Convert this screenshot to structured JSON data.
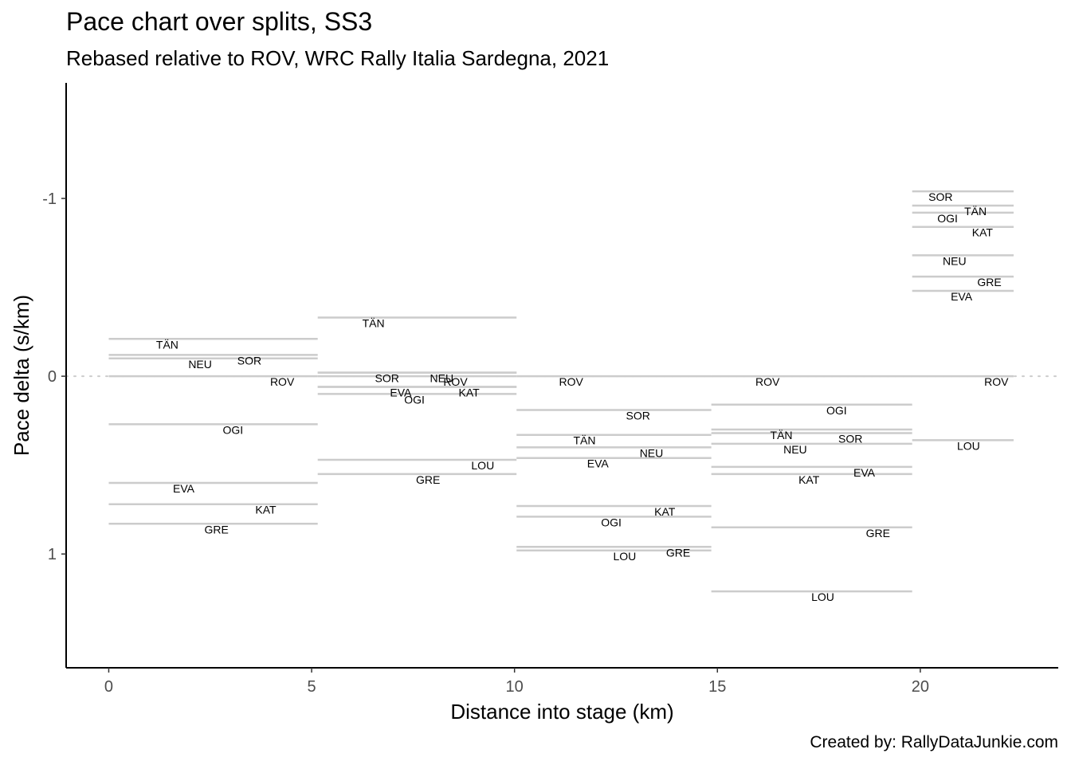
{
  "title": "Pace chart over splits, SS3",
  "subtitle": "Rebased relative to ROV, WRC Rally Italia Sardegna, 2021",
  "caption": "Created by: RallyDataJunkie.com",
  "chart_data": {
    "type": "line",
    "xlabel": "Distance into stage (km)",
    "ylabel": "Pace delta (s/km)",
    "x_ticks": [
      0,
      5,
      10,
      15,
      20
    ],
    "y_ticks": [
      -1,
      0,
      1
    ],
    "xlim": [
      -1.05,
      23.4
    ],
    "ylim": [
      -1.65,
      1.64
    ],
    "y_reversed": true,
    "reference_line": 0,
    "line_color": "#cccccc",
    "splits": [
      {
        "start": 0,
        "end": 5.15,
        "values": [
          {
            "driver": "TÄN",
            "pace": -0.21
          },
          {
            "driver": "SOR",
            "pace": -0.12
          },
          {
            "driver": "NEU",
            "pace": -0.1
          },
          {
            "driver": "ROV",
            "pace": 0
          },
          {
            "driver": "OGI",
            "pace": 0.27
          },
          {
            "driver": "EVA",
            "pace": 0.6
          },
          {
            "driver": "KAT",
            "pace": 0.72
          },
          {
            "driver": "GRE",
            "pace": 0.83
          }
        ]
      },
      {
        "start": 5.15,
        "end": 10.05,
        "values": [
          {
            "driver": "TÄN",
            "pace": -0.33
          },
          {
            "driver": "NEU",
            "pace": -0.02
          },
          {
            "driver": "SOR",
            "pace": -0.02
          },
          {
            "driver": "ROV",
            "pace": 0
          },
          {
            "driver": "EVA",
            "pace": 0.06
          },
          {
            "driver": "KAT",
            "pace": 0.06
          },
          {
            "driver": "OGI",
            "pace": 0.1
          },
          {
            "driver": "LOU",
            "pace": 0.47
          },
          {
            "driver": "GRE",
            "pace": 0.55
          }
        ]
      },
      {
        "start": 10.05,
        "end": 14.85,
        "values": [
          {
            "driver": "ROV",
            "pace": 0
          },
          {
            "driver": "SOR",
            "pace": 0.19
          },
          {
            "driver": "TÄN",
            "pace": 0.33
          },
          {
            "driver": "NEU",
            "pace": 0.4
          },
          {
            "driver": "EVA",
            "pace": 0.46
          },
          {
            "driver": "KAT",
            "pace": 0.73
          },
          {
            "driver": "OGI",
            "pace": 0.79
          },
          {
            "driver": "GRE",
            "pace": 0.96
          },
          {
            "driver": "LOU",
            "pace": 0.98
          }
        ]
      },
      {
        "start": 14.85,
        "end": 19.8,
        "values": [
          {
            "driver": "ROV",
            "pace": 0
          },
          {
            "driver": "OGI",
            "pace": 0.16
          },
          {
            "driver": "TÄN",
            "pace": 0.3
          },
          {
            "driver": "SOR",
            "pace": 0.32
          },
          {
            "driver": "NEU",
            "pace": 0.38
          },
          {
            "driver": "EVA",
            "pace": 0.51
          },
          {
            "driver": "KAT",
            "pace": 0.55
          },
          {
            "driver": "GRE",
            "pace": 0.85
          },
          {
            "driver": "LOU",
            "pace": 1.21
          }
        ]
      },
      {
        "start": 19.8,
        "end": 22.3,
        "values": [
          {
            "driver": "SOR",
            "pace": -1.04
          },
          {
            "driver": "TÄN",
            "pace": -0.96
          },
          {
            "driver": "OGI",
            "pace": -0.92
          },
          {
            "driver": "KAT",
            "pace": -0.84
          },
          {
            "driver": "NEU",
            "pace": -0.68
          },
          {
            "driver": "GRE",
            "pace": -0.56
          },
          {
            "driver": "EVA",
            "pace": -0.48
          },
          {
            "driver": "ROV",
            "pace": 0
          },
          {
            "driver": "LOU",
            "pace": 0.36
          }
        ]
      }
    ]
  }
}
